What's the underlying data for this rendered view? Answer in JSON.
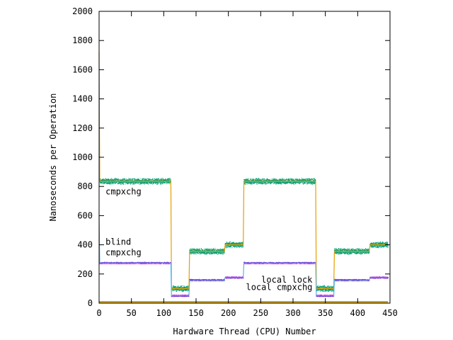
{
  "chart_data": {
    "type": "line",
    "title": "",
    "xlabel": "Hardware Thread (CPU) Number",
    "ylabel": "Nanoseconds per Operation",
    "xlim": [
      0,
      450
    ],
    "ylim": [
      0,
      2000
    ],
    "xticks": [
      0,
      50,
      100,
      150,
      200,
      250,
      300,
      350,
      400,
      450
    ],
    "yticks": [
      0,
      200,
      400,
      600,
      800,
      1000,
      1200,
      1400,
      1600,
      1800,
      2000
    ],
    "grid": false,
    "legend": "none",
    "series": [
      {
        "id": "cmpxchg",
        "color": "#009e73",
        "noise": 22,
        "style": "scatter-band",
        "segments": [
          {
            "x0": 1,
            "x1": 111,
            "y": 835
          },
          {
            "x0": 112,
            "x1": 139,
            "y": 100
          },
          {
            "x0": 140,
            "x1": 194,
            "y": 355
          },
          {
            "x0": 195,
            "x1": 223,
            "y": 400
          },
          {
            "x0": 224,
            "x1": 335,
            "y": 835
          },
          {
            "x0": 336,
            "x1": 363,
            "y": 100
          },
          {
            "x0": 364,
            "x1": 418,
            "y": 355
          },
          {
            "x0": 419,
            "x1": 447,
            "y": 400
          }
        ]
      },
      {
        "id": "cmpxchg-mean",
        "color": "#e69f00",
        "style": "line",
        "points": [
          [
            0,
            1720
          ],
          [
            1,
            835
          ],
          [
            111,
            835
          ],
          [
            112,
            100
          ],
          [
            139,
            100
          ],
          [
            140,
            355
          ],
          [
            194,
            355
          ],
          [
            195,
            400
          ],
          [
            223,
            400
          ],
          [
            224,
            835
          ],
          [
            335,
            835
          ],
          [
            336,
            100
          ],
          [
            363,
            100
          ],
          [
            364,
            355
          ],
          [
            418,
            355
          ],
          [
            419,
            400
          ],
          [
            447,
            400
          ]
        ]
      },
      {
        "id": "blind-cmpxchg",
        "color": "#9400d3",
        "noise": 6,
        "style": "scatter-band",
        "segments": [
          {
            "x0": 1,
            "x1": 111,
            "y": 275
          },
          {
            "x0": 112,
            "x1": 139,
            "y": 50
          },
          {
            "x0": 140,
            "x1": 194,
            "y": 158
          },
          {
            "x0": 195,
            "x1": 223,
            "y": 175
          },
          {
            "x0": 224,
            "x1": 335,
            "y": 275
          },
          {
            "x0": 336,
            "x1": 363,
            "y": 50
          },
          {
            "x0": 364,
            "x1": 418,
            "y": 158
          },
          {
            "x0": 419,
            "x1": 447,
            "y": 175
          }
        ]
      },
      {
        "id": "blind-cmpxchg-mean",
        "color": "#56b4e9",
        "style": "line",
        "points": [
          [
            0,
            600
          ],
          [
            1,
            275
          ],
          [
            111,
            275
          ],
          [
            112,
            50
          ],
          [
            139,
            50
          ],
          [
            140,
            158
          ],
          [
            194,
            158
          ],
          [
            195,
            175
          ],
          [
            223,
            175
          ],
          [
            224,
            275
          ],
          [
            335,
            275
          ],
          [
            336,
            50
          ],
          [
            363,
            50
          ],
          [
            364,
            158
          ],
          [
            418,
            158
          ],
          [
            419,
            175
          ],
          [
            447,
            175
          ]
        ]
      },
      {
        "id": "local-lock",
        "color": "#009e73",
        "style": "line",
        "points": [
          [
            0,
            10
          ],
          [
            447,
            10
          ]
        ]
      },
      {
        "id": "local-cmpxchg",
        "color": "#e69f00",
        "style": "line",
        "points": [
          [
            0,
            6
          ],
          [
            447,
            6
          ]
        ]
      }
    ],
    "annotations": [
      {
        "id": "cmpxchg",
        "lines": [
          "cmpxchg"
        ],
        "x": 10,
        "y": 745,
        "anchor": "start"
      },
      {
        "id": "blind",
        "lines": [
          "blind",
          "cmpxchg"
        ],
        "x": 10,
        "y": 400,
        "anchor": "start"
      },
      {
        "id": "local-lock",
        "lines": [
          "local lock"
        ],
        "x": 330,
        "y": 140,
        "anchor": "end"
      },
      {
        "id": "local-cmpxchg",
        "lines": [
          "local cmpxchg"
        ],
        "x": 330,
        "y": 90,
        "anchor": "end"
      }
    ]
  }
}
